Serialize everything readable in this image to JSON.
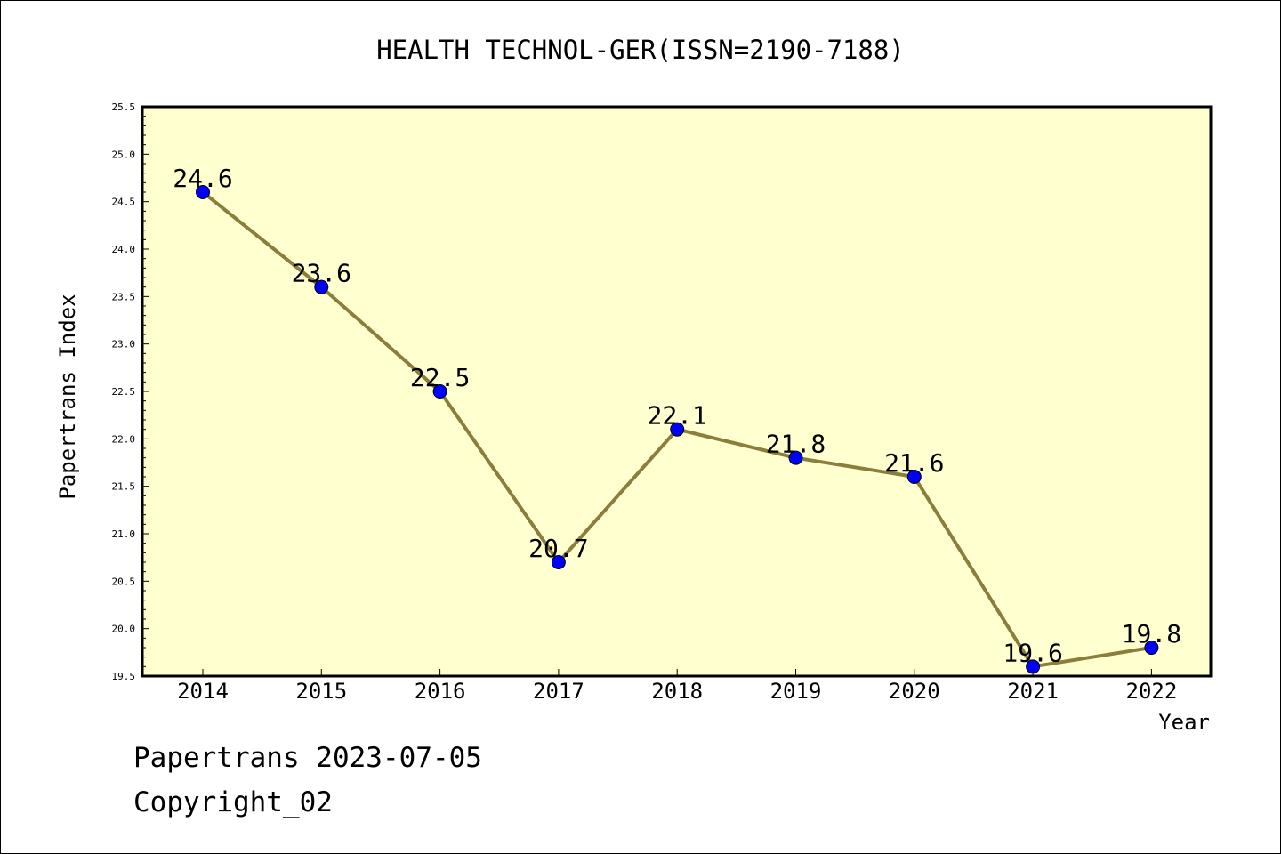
{
  "chart_data": {
    "type": "line",
    "title": "HEALTH TECHNOL-GER(ISSN=2190-7188)",
    "xlabel": "Year",
    "ylabel": "Papertrans Index",
    "categories": [
      "2014",
      "2015",
      "2016",
      "2017",
      "2018",
      "2019",
      "2020",
      "2021",
      "2022"
    ],
    "values": [
      24.6,
      23.6,
      22.5,
      20.7,
      22.1,
      21.8,
      21.6,
      19.6,
      19.8
    ],
    "data_labels": [
      "24.6",
      "23.6",
      "22.5",
      "20.7",
      "22.1",
      "21.8",
      "21.6",
      "19.6",
      "19.8"
    ],
    "ylim": [
      19.5,
      25.5
    ],
    "yticks": [
      "19.5",
      "20.0",
      "20.5",
      "21.0",
      "21.5",
      "22.0",
      "22.5",
      "23.0",
      "23.5",
      "24.0",
      "24.5",
      "25.0",
      "25.5"
    ],
    "grid": false,
    "colors": {
      "plot_background": "#ffffd0",
      "line": "#8b7d3a",
      "marker": "#0000ff"
    }
  },
  "footer": {
    "date_text": "Papertrans 2023-07-05",
    "copyright_text": "Copyright_02"
  }
}
